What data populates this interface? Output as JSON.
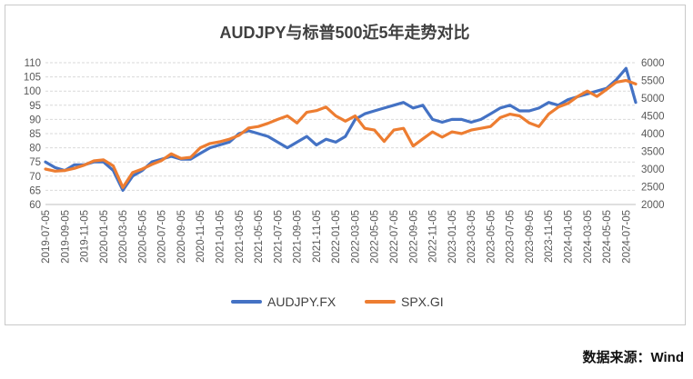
{
  "source_label": "数据来源：Wind",
  "chart_data": {
    "type": "line",
    "title": "AUDJPY与标普500近5年走势对比",
    "colors": {
      "AUDJPY.FX": "#4472c4",
      "SPX.GI": "#ed7d31"
    },
    "y_left": {
      "min": 60,
      "max": 110,
      "step": 5
    },
    "y_right": {
      "min": 2000,
      "max": 6000,
      "step": 500
    },
    "x_tick_labels": [
      "2019-07-05",
      "2019-09-05",
      "2019-11-05",
      "2020-01-05",
      "2020-03-05",
      "2020-05-05",
      "2020-07-05",
      "2020-09-05",
      "2020-11-05",
      "2021-01-05",
      "2021-03-05",
      "2021-05-05",
      "2021-07-05",
      "2021-09-05",
      "2021-11-05",
      "2022-01-05",
      "2022-03-05",
      "2022-05-05",
      "2022-07-05",
      "2022-09-05",
      "2022-11-05",
      "2023-01-05",
      "2023-03-05",
      "2023-05-05",
      "2023-07-05",
      "2023-09-05",
      "2023-11-05",
      "2024-01-05",
      "2024-03-05",
      "2024-05-05",
      "2024-07-05"
    ],
    "x_months": [
      "2019-07",
      "2019-08",
      "2019-09",
      "2019-10",
      "2019-11",
      "2019-12",
      "2020-01",
      "2020-02",
      "2020-03",
      "2020-04",
      "2020-05",
      "2020-06",
      "2020-07",
      "2020-08",
      "2020-09",
      "2020-10",
      "2020-11",
      "2020-12",
      "2021-01",
      "2021-02",
      "2021-03",
      "2021-04",
      "2021-05",
      "2021-06",
      "2021-07",
      "2021-08",
      "2021-09",
      "2021-10",
      "2021-11",
      "2021-12",
      "2022-01",
      "2022-02",
      "2022-03",
      "2022-04",
      "2022-05",
      "2022-06",
      "2022-07",
      "2022-08",
      "2022-09",
      "2022-10",
      "2022-11",
      "2022-12",
      "2023-01",
      "2023-02",
      "2023-03",
      "2023-04",
      "2023-05",
      "2023-06",
      "2023-07",
      "2023-08",
      "2023-09",
      "2023-10",
      "2023-11",
      "2023-12",
      "2024-01",
      "2024-02",
      "2024-03",
      "2024-04",
      "2024-05",
      "2024-06",
      "2024-07",
      "2024-08"
    ],
    "series": [
      {
        "name": "AUDJPY.FX",
        "axis": "left",
        "values": [
          75,
          73,
          72,
          74,
          74,
          75,
          75,
          72,
          65,
          70,
          72,
          75,
          76,
          77,
          76,
          76,
          78,
          80,
          81,
          82,
          85,
          86,
          85,
          84,
          82,
          80,
          82,
          84,
          81,
          83,
          82,
          84,
          90,
          92,
          93,
          94,
          95,
          96,
          94,
          95,
          90,
          89,
          90,
          90,
          89,
          90,
          92,
          94,
          95,
          93,
          93,
          94,
          96,
          95,
          97,
          98,
          99,
          100,
          101,
          104,
          108,
          96
        ]
      },
      {
        "name": "SPX.GI",
        "axis": "right",
        "values": [
          3000,
          2940,
          2960,
          3020,
          3110,
          3230,
          3260,
          3090,
          2480,
          2900,
          3000,
          3130,
          3240,
          3430,
          3300,
          3330,
          3600,
          3720,
          3770,
          3840,
          3950,
          4160,
          4200,
          4290,
          4400,
          4500,
          4300,
          4600,
          4650,
          4750,
          4500,
          4350,
          4500,
          4150,
          4100,
          3780,
          4100,
          4150,
          3650,
          3850,
          4050,
          3900,
          4050,
          4000,
          4100,
          4150,
          4200,
          4450,
          4550,
          4500,
          4300,
          4200,
          4550,
          4750,
          4850,
          5050,
          5200,
          5050,
          5250,
          5450,
          5500,
          5400
        ]
      }
    ]
  }
}
